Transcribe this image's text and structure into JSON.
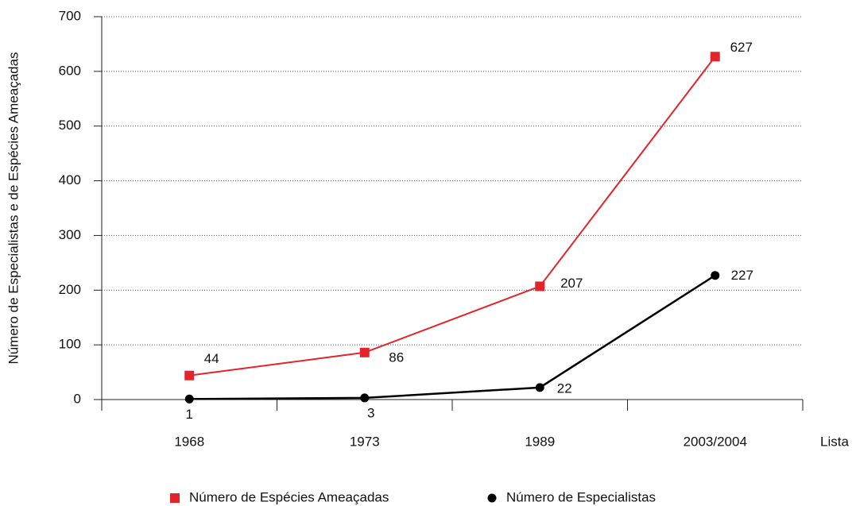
{
  "chart_data": {
    "type": "line",
    "y_label": "Número de Especialistas e de Espécies Ameaçadas",
    "x_label": "Lista",
    "categories": [
      "1968",
      "1973",
      "1989",
      "2003/2004"
    ],
    "series": [
      {
        "name": "Número de Espécies Ameaçadas",
        "color": "#e3242b",
        "marker": "square",
        "values": [
          44,
          86,
          207,
          627
        ]
      },
      {
        "name": "Número de Especialistas",
        "color": "#000000",
        "marker": "circle",
        "values": [
          1,
          3,
          22,
          227
        ]
      }
    ],
    "ylim": [
      0,
      700
    ],
    "yticks": [
      0,
      100,
      200,
      300,
      400,
      500,
      600,
      700
    ],
    "grid": true
  }
}
